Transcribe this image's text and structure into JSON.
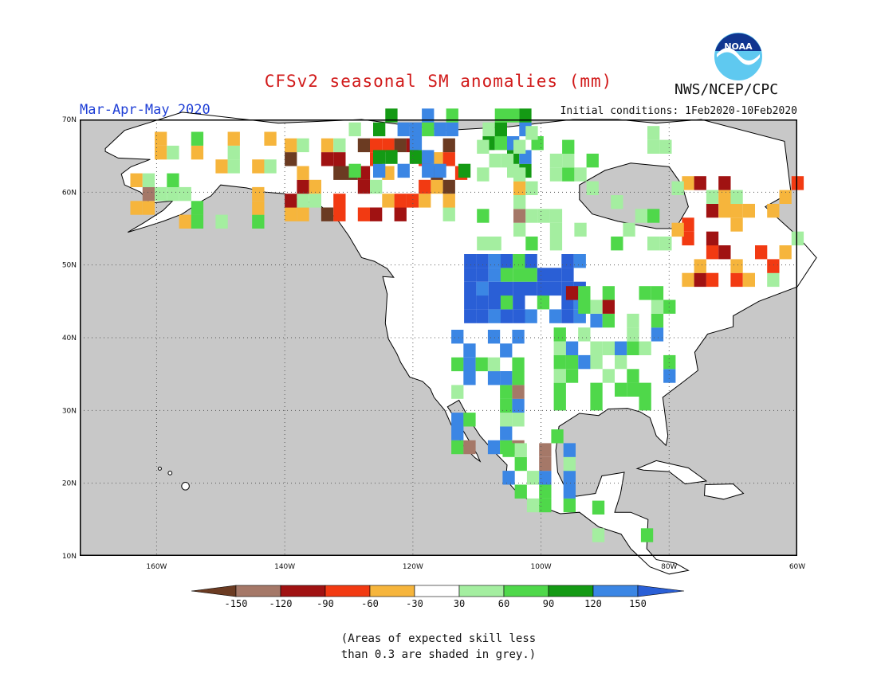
{
  "header": {
    "title": "CFSv2 seasonal SM anomalies (mm)",
    "agency": "NWS/NCEP/CPC",
    "logo_text": "NOAA",
    "season": "Mar-Apr-May 2020",
    "initial_conditions": "Initial conditions: 1Feb2020-10Feb2020"
  },
  "map": {
    "projection": "lat-lon",
    "lat_labels": [
      "70N",
      "60N",
      "50N",
      "40N",
      "30N",
      "20N",
      "10N"
    ],
    "lon_labels": [
      "160W",
      "140W",
      "120W",
      "100W",
      "80W",
      "60W"
    ],
    "grid": "dotted",
    "colors": {
      "ocean": "#c8c8c8",
      "land": "#ffffff",
      "border": "#000000"
    }
  },
  "legend": {
    "ticks": [
      "-150",
      "-120",
      "-90",
      "-60",
      "-30",
      "30",
      "60",
      "90",
      "120",
      "150"
    ],
    "colors": [
      "#6b3b22",
      "#a57868",
      "#a01212",
      "#f23a12",
      "#f6b53c",
      "#ffffff",
      "#a4eea0",
      "#4fd84a",
      "#149a14",
      "#3b86e4",
      "#2a5fd6"
    ]
  },
  "note": {
    "line1": "(Areas of expected skill less",
    "line2": "than 0.3 are shaded in grey.)"
  }
}
